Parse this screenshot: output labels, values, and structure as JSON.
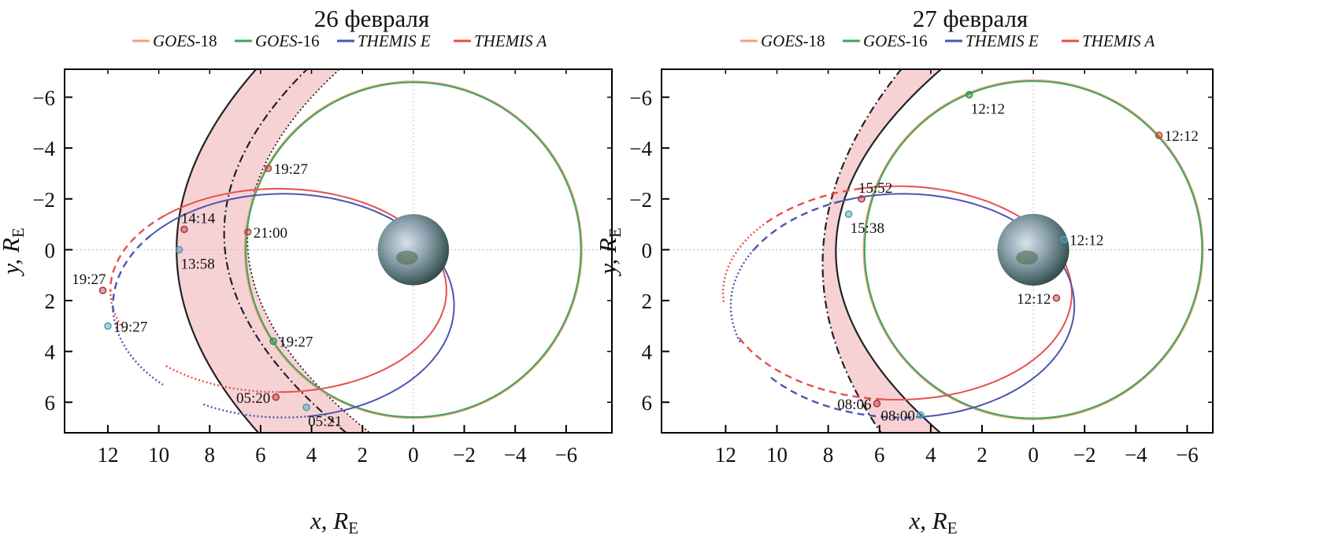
{
  "colors": {
    "goes18": "#f0a07c",
    "goes16": "#3da55c",
    "themisE": "#4b55b2",
    "themisA": "#e6504c",
    "band": "#f7d2d5",
    "boundary": "#222222"
  },
  "legend": [
    {
      "key": "goes18",
      "italic": "GOES",
      "suffix": "-18"
    },
    {
      "key": "goes16",
      "italic": "GOES",
      "suffix": "-16"
    },
    {
      "key": "themisE",
      "italic": "THEMIS E",
      "suffix": ""
    },
    {
      "key": "themisA",
      "italic": "THEMIS A",
      "suffix": ""
    }
  ],
  "chart_data": [
    {
      "type": "line",
      "title": "26 февраля",
      "xlabel": "x, R",
      "xlabel_sub": "E",
      "ylabel": "y, R",
      "ylabel_sub": "E",
      "xlim": [
        13.7,
        -7.8
      ],
      "ylim": [
        -7.1,
        7.2
      ],
      "xticks": [
        12,
        10,
        8,
        6,
        4,
        2,
        0,
        -2,
        -4,
        -6
      ],
      "yticks": [
        -6,
        -4,
        -2,
        0,
        2,
        4,
        6
      ],
      "geo_orbits": [
        {
          "key": "goes18",
          "r": 6.62
        },
        {
          "key": "goes16",
          "r": 6.58
        }
      ],
      "themis_orbits": [
        {
          "key": "themisA",
          "cx": 5.3,
          "cy": 1.6,
          "a": 6.6,
          "b": 4.0,
          "segments": [
            {
              "style": "solid",
              "from": -270,
              "to": -47
            },
            {
              "style": "dashed",
              "from": -47,
              "to": 0
            },
            {
              "style": "dotted",
              "from": 0,
              "to": 25
            },
            {
              "style": "dotted",
              "from": 48,
              "to": 90
            }
          ]
        },
        {
          "key": "themisE",
          "cx": 5.1,
          "cy": 2.2,
          "a": 6.7,
          "b": 4.4,
          "segments": [
            {
              "style": "solid",
              "from": -262,
              "to": -39
            },
            {
              "style": "dashed",
              "from": -39,
              "to": 5
            },
            {
              "style": "dotted",
              "from": 5,
              "to": 45
            },
            {
              "style": "dotted",
              "from": 62,
              "to": 98
            }
          ]
        }
      ],
      "boundaries": [
        {
          "style": "solid",
          "x0": 9.3,
          "b": 0.0,
          "k": 0.062
        },
        {
          "style": "dashdot",
          "x0": 7.4,
          "b": -0.1,
          "k": 0.078
        },
        {
          "style": "dotted",
          "x0": 6.5,
          "b": -0.075,
          "k": 0.082
        }
      ],
      "band_between": [
        0,
        2
      ],
      "markers": [
        {
          "key": "goes18",
          "x": 5.7,
          "y": -3.2,
          "label": "19:27",
          "side": "right"
        },
        {
          "key": "themisA",
          "x": 9.0,
          "y": -0.8,
          "label": "14:14",
          "side": "above"
        },
        {
          "key": "goes18",
          "x": 6.5,
          "y": -0.7,
          "label": "21:00",
          "side": "right"
        },
        {
          "key": "themisE",
          "x": 9.2,
          "y": 0.0,
          "label": "13:58",
          "side": "below"
        },
        {
          "key": "themisA",
          "x": 12.2,
          "y": 1.6,
          "label": "19:27",
          "side": "above-left"
        },
        {
          "key": "themisE",
          "x": 12.0,
          "y": 3.0,
          "label": "19:27",
          "side": "right"
        },
        {
          "key": "goes16",
          "x": 5.5,
          "y": 3.6,
          "label": "19:27",
          "side": "right"
        },
        {
          "key": "themisA",
          "x": 5.4,
          "y": 5.8,
          "label": "05:20",
          "side": "left"
        },
        {
          "key": "themisE",
          "x": 4.2,
          "y": 6.2,
          "label": "05:21",
          "side": "below"
        }
      ]
    },
    {
      "type": "line",
      "title": "27 февраля",
      "xlabel": "x, R",
      "xlabel_sub": "E",
      "ylabel": "y, R",
      "ylabel_sub": "E",
      "xlim": [
        14.5,
        -7.0
      ],
      "ylim": [
        -7.1,
        7.2
      ],
      "xticks": [
        12,
        10,
        8,
        6,
        4,
        2,
        0,
        -2,
        -4,
        -6
      ],
      "yticks": [
        -6,
        -4,
        -2,
        0,
        2,
        4,
        6
      ],
      "geo_orbits": [
        {
          "key": "goes18",
          "r": 6.62
        },
        {
          "key": "goes16",
          "r": 6.58
        }
      ],
      "themis_orbits": [
        {
          "key": "themisA",
          "cx": 5.3,
          "cy": 1.7,
          "a": 6.8,
          "b": 4.2,
          "segments": [
            {
              "style": "solid",
              "from": -275,
              "to": -78
            },
            {
              "style": "dashed",
              "from": -78,
              "to": -40
            },
            {
              "style": "dotted",
              "from": -40,
              "to": 5
            },
            {
              "style": "dashed",
              "from": 25,
              "to": 85
            }
          ]
        },
        {
          "key": "themisE",
          "cx": 5.1,
          "cy": 2.2,
          "a": 6.7,
          "b": 4.4,
          "segments": [
            {
              "style": "solid",
              "from": -264,
              "to": -69
            },
            {
              "style": "dashed",
              "from": -69,
              "to": -30
            },
            {
              "style": "dotted",
              "from": -30,
              "to": 20
            },
            {
              "style": "dashed",
              "from": 40,
              "to": 96
            }
          ]
        }
      ],
      "boundaries": [
        {
          "style": "solid",
          "x0": 7.7,
          "b": 0.01,
          "k": 0.08
        },
        {
          "style": "dashdot",
          "x0": 8.2,
          "b": 0.06,
          "k": 0.052
        }
      ],
      "band_between": [
        1,
        0
      ],
      "markers": [
        {
          "key": "goes16",
          "x": 2.5,
          "y": -6.1,
          "label": "12:12",
          "side": "below"
        },
        {
          "key": "goes18",
          "x": -4.9,
          "y": -4.5,
          "label": "12:12",
          "side": "right"
        },
        {
          "key": "themisA",
          "x": 6.7,
          "y": -2.0,
          "label": "15:52",
          "side": "above"
        },
        {
          "key": "themisE",
          "x": 7.2,
          "y": -1.4,
          "label": "15:38",
          "side": "below"
        },
        {
          "key": "themisE",
          "x": -1.2,
          "y": -0.4,
          "label": "12:12",
          "side": "right"
        },
        {
          "key": "themisA",
          "x": -0.9,
          "y": 1.9,
          "label": "12:12",
          "side": "left"
        },
        {
          "key": "themisA",
          "x": 6.1,
          "y": 6.05,
          "label": "08:06",
          "side": "left"
        },
        {
          "key": "themisE",
          "x": 4.4,
          "y": 6.5,
          "label": "08:00",
          "side": "left"
        }
      ]
    }
  ]
}
